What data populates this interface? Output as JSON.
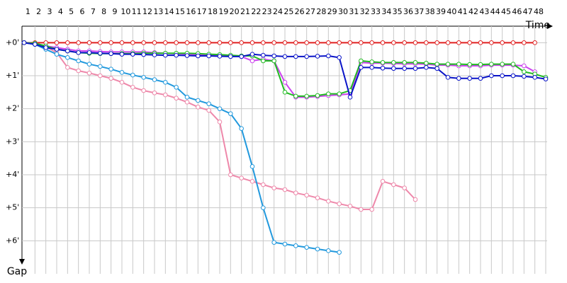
{
  "chart_data": {
    "type": "line",
    "x_label": "Time",
    "y_label": "Gap",
    "x": [
      0,
      1,
      2,
      3,
      4,
      5,
      6,
      7,
      8,
      9,
      10,
      11,
      12,
      13,
      14,
      15,
      16,
      17,
      18,
      19,
      20,
      21,
      22,
      23,
      24,
      25,
      26,
      27,
      28,
      29,
      30,
      31,
      32,
      33,
      34,
      35,
      36,
      37,
      38,
      39,
      40,
      41,
      42,
      43,
      44,
      45,
      46,
      47,
      48
    ],
    "xlim": [
      0,
      48
    ],
    "xticks": [
      1,
      2,
      3,
      4,
      5,
      6,
      7,
      8,
      9,
      10,
      11,
      12,
      13,
      14,
      15,
      16,
      17,
      18,
      19,
      20,
      21,
      22,
      23,
      24,
      25,
      26,
      27,
      28,
      29,
      30,
      31,
      32,
      33,
      34,
      35,
      36,
      37,
      38,
      39,
      40,
      41,
      42,
      43,
      44,
      45,
      46,
      47,
      48
    ],
    "ylim": [
      -0.5,
      7
    ],
    "yticks": [
      {
        "value": 0,
        "label": "+0'"
      },
      {
        "value": 1,
        "label": "+1'"
      },
      {
        "value": 2,
        "label": "+2'"
      },
      {
        "value": 3,
        "label": "+3'"
      },
      {
        "value": 4,
        "label": "+4'"
      },
      {
        "value": 5,
        "label": "+5'"
      },
      {
        "value": 6,
        "label": "+6'"
      }
    ],
    "y_inverted": true,
    "grid": true,
    "series": [
      {
        "color": "#e02020",
        "values": [
          0,
          0,
          0,
          0,
          0,
          0,
          0,
          0,
          0,
          0,
          0,
          0,
          0,
          0,
          0,
          0,
          0,
          0,
          0,
          0,
          0,
          0,
          0,
          0,
          0,
          0,
          0,
          0,
          0,
          0,
          0,
          0,
          0,
          0,
          0,
          0,
          0,
          0,
          0,
          0,
          0,
          0,
          0,
          0,
          0,
          0,
          0,
          0,
          null
        ]
      },
      {
        "color": "#ee88aa",
        "values": [
          0,
          0.02,
          0.12,
          0.3,
          0.75,
          0.85,
          0.92,
          1.0,
          1.08,
          1.2,
          1.35,
          1.45,
          1.52,
          1.58,
          1.68,
          1.8,
          1.95,
          2.05,
          2.4,
          4.0,
          4.1,
          4.2,
          4.3,
          4.4,
          4.45,
          4.55,
          4.62,
          4.7,
          4.8,
          4.88,
          4.95,
          5.05,
          5.05,
          4.2,
          4.3,
          4.4,
          4.75,
          null,
          null,
          null,
          null,
          null,
          null,
          null,
          null,
          null,
          null,
          null,
          null
        ]
      },
      {
        "color": "#2299dd",
        "values": [
          0,
          0.05,
          0.2,
          0.35,
          0.45,
          0.55,
          0.65,
          0.72,
          0.8,
          0.9,
          0.98,
          1.05,
          1.12,
          1.2,
          1.35,
          1.65,
          1.75,
          1.85,
          2.0,
          2.15,
          2.6,
          3.75,
          5.0,
          6.05,
          6.1,
          6.15,
          6.2,
          6.25,
          6.3,
          6.35,
          null,
          null,
          null,
          null,
          null,
          null,
          null,
          null,
          null,
          null,
          null,
          null,
          null,
          null,
          null,
          null,
          null,
          null,
          null
        ]
      },
      {
        "color": "#cc44ee",
        "values": [
          0,
          0.02,
          0.1,
          0.15,
          0.2,
          0.25,
          0.25,
          0.27,
          0.28,
          0.28,
          0.28,
          0.28,
          0.3,
          0.32,
          0.33,
          0.35,
          0.36,
          0.37,
          0.38,
          0.4,
          0.42,
          0.55,
          0.5,
          0.55,
          1.2,
          1.65,
          1.65,
          1.63,
          1.6,
          1.58,
          1.55,
          0.6,
          0.62,
          0.62,
          0.63,
          0.64,
          0.64,
          0.65,
          0.68,
          0.68,
          0.7,
          0.7,
          0.7,
          0.68,
          0.68,
          0.68,
          0.7,
          0.88,
          null
        ]
      },
      {
        "color": "#22bb22",
        "values": [
          0,
          0.02,
          0.1,
          0.2,
          0.25,
          0.3,
          0.32,
          0.33,
          0.33,
          0.33,
          0.33,
          0.32,
          0.32,
          0.32,
          0.32,
          0.32,
          0.33,
          0.35,
          0.36,
          0.38,
          0.4,
          0.4,
          0.55,
          0.55,
          1.5,
          1.62,
          1.62,
          1.6,
          1.55,
          1.55,
          1.45,
          0.55,
          0.58,
          0.6,
          0.6,
          0.6,
          0.6,
          0.62,
          0.65,
          0.65,
          0.65,
          0.66,
          0.66,
          0.65,
          0.65,
          0.65,
          0.88,
          0.95,
          1.05
        ]
      },
      {
        "color": "#0a14c8",
        "values": [
          0,
          0.05,
          0.15,
          0.2,
          0.25,
          0.3,
          0.3,
          0.32,
          0.33,
          0.35,
          0.35,
          0.36,
          0.37,
          0.38,
          0.38,
          0.39,
          0.4,
          0.4,
          0.41,
          0.42,
          0.42,
          0.35,
          0.38,
          0.4,
          0.42,
          0.42,
          0.42,
          0.41,
          0.4,
          0.45,
          1.65,
          0.75,
          0.75,
          0.77,
          0.78,
          0.78,
          0.78,
          0.75,
          0.78,
          1.05,
          1.08,
          1.08,
          1.08,
          1.0,
          1.0,
          1.0,
          1.02,
          1.05,
          1.1
        ]
      }
    ]
  }
}
